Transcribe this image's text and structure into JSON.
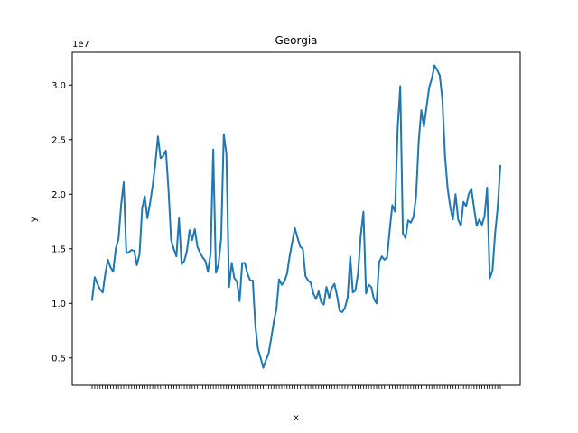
{
  "chart_data": {
    "type": "line",
    "title": "Georgia",
    "xlabel": "x",
    "ylabel": "y",
    "y_offset_label": "1e7",
    "y_scale": 10000000,
    "ylim": [
      0.25,
      3.3
    ],
    "yticks": [
      0.5,
      1.0,
      1.5,
      2.0,
      2.5,
      3.0
    ],
    "ytick_labels": [
      "0.5",
      "1.0",
      "1.5",
      "2.0",
      "2.5",
      "3.0"
    ],
    "grid": false,
    "legend": "none",
    "line_color": "#1f77b4",
    "y": [
      1.03,
      1.24,
      1.18,
      1.13,
      1.1,
      1.27,
      1.4,
      1.33,
      1.29,
      1.5,
      1.59,
      1.9,
      2.11,
      1.46,
      1.47,
      1.49,
      1.48,
      1.35,
      1.45,
      1.87,
      1.98,
      1.78,
      1.92,
      2.08,
      2.28,
      2.53,
      2.33,
      2.35,
      2.4,
      2.04,
      1.58,
      1.5,
      1.43,
      1.78,
      1.36,
      1.39,
      1.48,
      1.67,
      1.58,
      1.68,
      1.52,
      1.46,
      1.42,
      1.39,
      1.29,
      1.46,
      2.41,
      1.28,
      1.36,
      1.6,
      2.55,
      2.37,
      1.15,
      1.37,
      1.23,
      1.2,
      1.02,
      1.37,
      1.37,
      1.27,
      1.21,
      1.21,
      0.79,
      0.58,
      0.5,
      0.41,
      0.48,
      0.54,
      0.68,
      0.83,
      0.95,
      1.22,
      1.17,
      1.2,
      1.27,
      1.43,
      1.56,
      1.69,
      1.6,
      1.52,
      1.5,
      1.25,
      1.21,
      1.19,
      1.09,
      1.04,
      1.11,
      1.01,
      0.99,
      1.15,
      1.05,
      1.14,
      1.18,
      1.07,
      0.93,
      0.92,
      0.96,
      1.05,
      1.43,
      1.1,
      1.12,
      1.28,
      1.62,
      1.84,
      1.09,
      1.17,
      1.15,
      1.04,
      1.0,
      1.38,
      1.43,
      1.4,
      1.42,
      1.67,
      1.9,
      1.84,
      2.6,
      2.99,
      1.64,
      1.6,
      1.76,
      1.74,
      1.79,
      1.98,
      2.48,
      2.77,
      2.62,
      2.8,
      2.98,
      3.06,
      3.18,
      3.14,
      3.09,
      2.87,
      2.34,
      2.05,
      1.88,
      1.77,
      2.0,
      1.77,
      1.71,
      1.93,
      1.89,
      2.0,
      2.05,
      1.88,
      1.71,
      1.77,
      1.72,
      1.8,
      2.06,
      1.23,
      1.3,
      1.64,
      1.88,
      2.26
    ]
  }
}
